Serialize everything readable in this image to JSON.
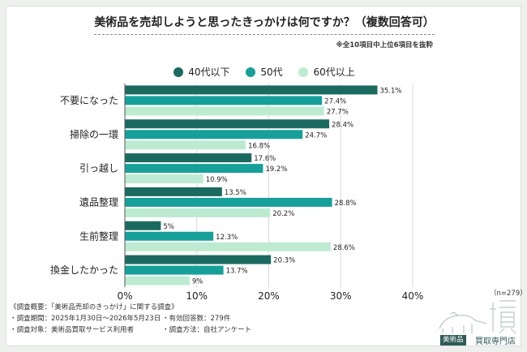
{
  "title": "美術品を売却しようと思ったきっかけは何ですか？（複数回答可）",
  "note": "※全10項目中上位6項目を抜粋",
  "colors": {
    "s1": "#1b6a60",
    "s2": "#17a09a",
    "s3": "#bdebd1"
  },
  "footer": {
    "line1": "《調査概要：「美術品売却のきっかけ」に関する調査》",
    "period_label": "・調査期間：2025年1月30日〜2026年5月23日",
    "responses_label": "・有効回答数：279件",
    "target_label": "・調査対象：美術品買取サービス利用者",
    "method_label": "・調査方法：自社アンケート",
    "n_label": "（n=279）"
  },
  "logo": {
    "tag": "美術品",
    "name": "買取専門店"
  },
  "chart_data": {
    "type": "bar",
    "orientation": "horizontal",
    "categories": [
      "不要になった",
      "掃除の一環",
      "引っ越し",
      "遺品整理",
      "生前整理",
      "換金したかった"
    ],
    "series": [
      {
        "name": "40代以下",
        "values": [
          35.1,
          28.4,
          17.6,
          13.5,
          5,
          20.3
        ]
      },
      {
        "name": "50代",
        "values": [
          27.4,
          24.7,
          19.2,
          28.8,
          12.3,
          13.7
        ]
      },
      {
        "name": "60代以上",
        "values": [
          27.7,
          16.8,
          10.9,
          20.2,
          28.6,
          9
        ]
      }
    ],
    "value_labels": [
      [
        "35.1%",
        "28.4%",
        "17.6%",
        "13.5%",
        "5%",
        "20.3%"
      ],
      [
        "27.4%",
        "24.7%",
        "19.2%",
        "28.8%",
        "12.3%",
        "13.7%"
      ],
      [
        "27.7%",
        "16.8%",
        "10.9%",
        "20.2%",
        "28.6%",
        "9%"
      ]
    ],
    "xticks": [
      "0%",
      "10%",
      "20%",
      "30%",
      "40%"
    ],
    "xlim": [
      0,
      40
    ],
    "legend": "top-center",
    "grid": true
  }
}
